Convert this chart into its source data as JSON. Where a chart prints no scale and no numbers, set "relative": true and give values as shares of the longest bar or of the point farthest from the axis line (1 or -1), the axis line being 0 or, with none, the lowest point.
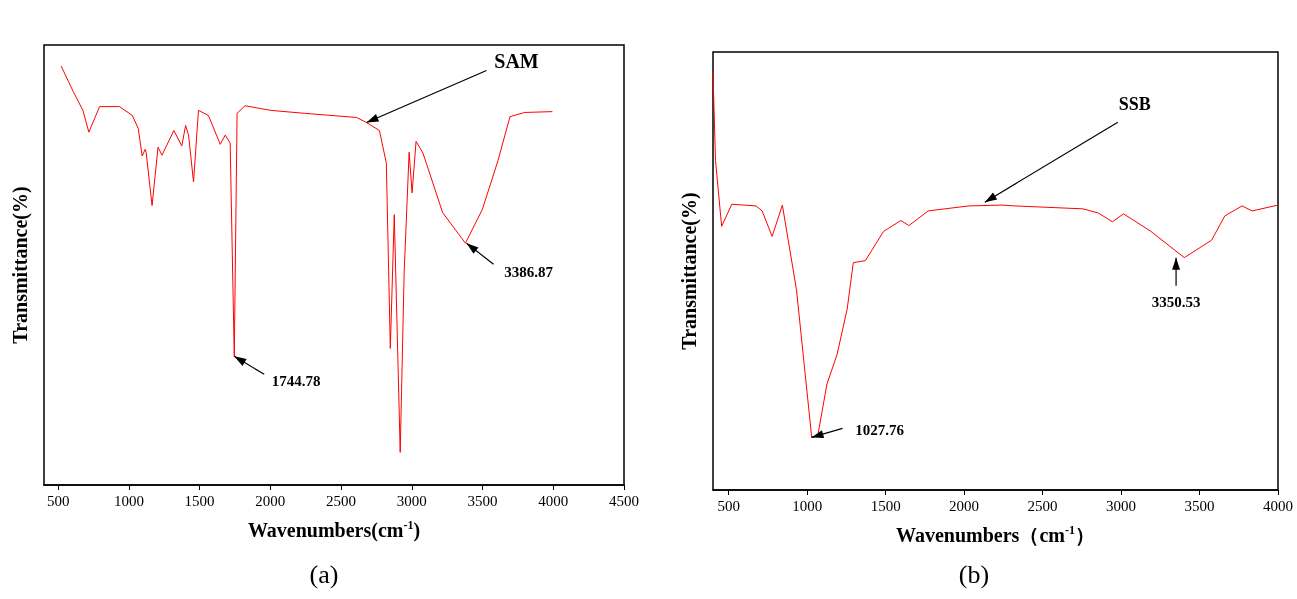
{
  "chart_data": [
    {
      "type": "line",
      "relative": true,
      "marker": "none",
      "color": "#ff0000",
      "xlabel": "Wavenumbers(cm$^{-1}$)",
      "ylabel": "Transmittance(%)",
      "xlim": [
        400,
        4500
      ],
      "xticks": [
        500,
        1000,
        1500,
        2000,
        2500,
        3000,
        3500,
        4000,
        4500
      ],
      "x": [
        521,
        605,
        675,
        717,
        793,
        933,
        1024,
        1066,
        1094,
        1115,
        1122,
        1164,
        1206,
        1234,
        1318,
        1374,
        1401,
        1422,
        1457,
        1492,
        1562,
        1646,
        1681,
        1716,
        1745,
        1765,
        1821,
        2003,
        2240,
        2610,
        2680,
        2771,
        2820,
        2848,
        2876,
        2918,
        2946,
        2981,
        3002,
        3030,
        3079,
        3218,
        3379,
        3498,
        3610,
        3694,
        3798,
        3994
      ],
      "values": [
        1.0,
        0.94,
        0.894,
        0.842,
        0.903,
        0.903,
        0.882,
        0.851,
        0.785,
        0.801,
        0.794,
        0.667,
        0.806,
        0.787,
        0.846,
        0.809,
        0.858,
        0.835,
        0.723,
        0.894,
        0.882,
        0.813,
        0.835,
        0.816,
        0.307,
        0.887,
        0.905,
        0.894,
        0.887,
        0.877,
        0.865,
        0.846,
        0.768,
        0.326,
        0.645,
        0.078,
        0.508,
        0.794,
        0.697,
        0.82,
        0.792,
        0.65,
        0.577,
        0.657,
        0.775,
        0.879,
        0.889,
        0.891
      ],
      "annotations": [
        {
          "text": "SAM",
          "x": 2680,
          "y": 0.865
        },
        {
          "text": "1744.78",
          "x": 1744.78,
          "y": 0.307
        },
        {
          "text": "3386.87",
          "x": 3386.87,
          "y": 0.577
        },
        "(a)"
      ]
    },
    {
      "type": "line",
      "relative": true,
      "marker": "none",
      "color": "#ff0000",
      "xlabel": "Wavenumbers（cm$^{-1}$）",
      "ylabel": "Transmittance(%)",
      "xlim": [
        400,
        4000
      ],
      "xticks": [
        500,
        1000,
        1500,
        2000,
        2500,
        3000,
        3500,
        4000
      ],
      "x": [
        400,
        416,
        455,
        520,
        674,
        713,
        777,
        842,
        932,
        1029,
        1068,
        1126,
        1190,
        1255,
        1294,
        1371,
        1487,
        1597,
        1648,
        1771,
        2029,
        2242,
        2326,
        2758,
        2855,
        2945,
        3016,
        3190,
        3403,
        3577,
        3661,
        3771,
        3835,
        4000
      ],
      "values": [
        1.0,
        0.79,
        0.632,
        0.685,
        0.681,
        0.669,
        0.608,
        0.683,
        0.48,
        0.126,
        0.131,
        0.254,
        0.324,
        0.434,
        0.545,
        0.55,
        0.62,
        0.646,
        0.634,
        0.669,
        0.681,
        0.683,
        0.681,
        0.674,
        0.664,
        0.643,
        0.662,
        0.62,
        0.557,
        0.599,
        0.657,
        0.681,
        0.669,
        0.683
      ],
      "annotations": [
        {
          "text": "SSB",
          "x": 2132,
          "y": 0.69
        },
        {
          "text": "1027.76",
          "x": 1027.76,
          "y": 0.126
        },
        {
          "text": "3350.53",
          "x": 3350.53,
          "y": 0.557
        },
        "(b)"
      ]
    }
  ]
}
